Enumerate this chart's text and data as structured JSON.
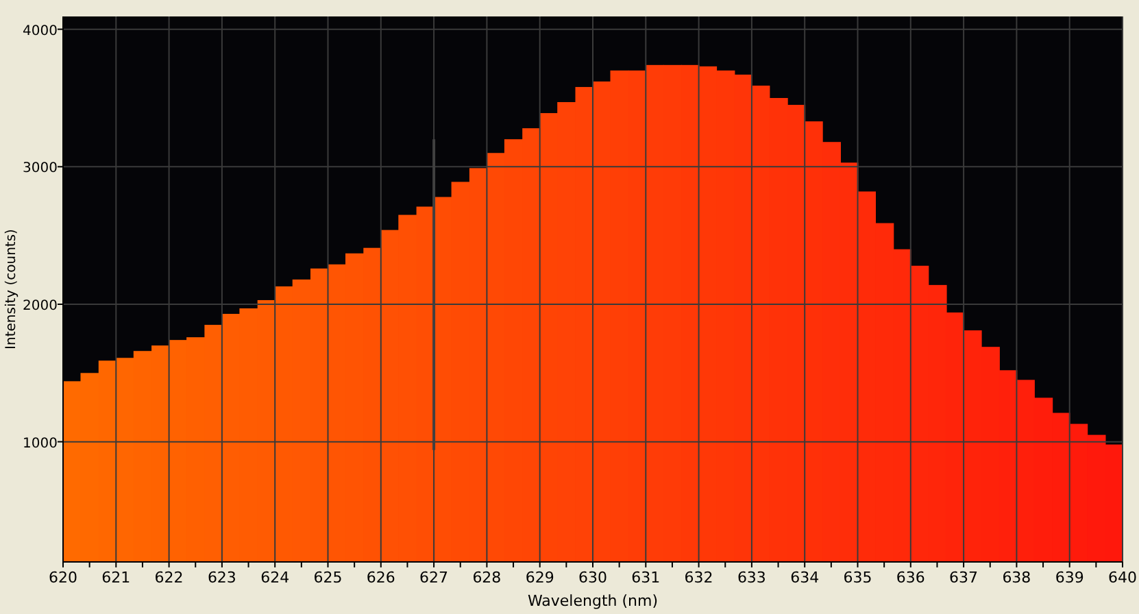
{
  "chart_data": {
    "type": "histogram",
    "xlabel": "Wavelength (nm)",
    "ylabel": "Intensity (counts)",
    "bins": [
      620,
      620.33,
      620.67,
      621,
      621.33,
      621.67,
      622,
      622.33,
      622.67,
      623,
      623.33,
      623.67,
      624,
      624.33,
      624.67,
      625,
      625.33,
      625.67,
      626,
      626.33,
      626.67,
      627,
      627.33,
      627.67,
      628,
      628.33,
      628.67,
      629,
      629.33,
      629.67,
      630,
      630.33,
      630.67,
      631,
      631.33,
      631.67,
      632,
      632.33,
      632.67,
      633,
      633.33,
      633.67,
      634,
      634.33,
      634.67,
      635,
      635.33,
      635.67,
      636,
      636.33,
      636.67,
      637,
      637.33,
      637.67,
      638,
      638.33,
      638.67,
      639,
      639.33,
      639.67,
      640
    ],
    "values": [
      1440,
      1500,
      1590,
      1610,
      1660,
      1700,
      1740,
      1760,
      1850,
      1930,
      1970,
      2030,
      2130,
      2180,
      2260,
      2290,
      2370,
      2410,
      2540,
      2650,
      2710,
      2780,
      2890,
      2990,
      3100,
      3200,
      3280,
      3390,
      3470,
      3580,
      3620,
      3700,
      3700,
      3740,
      3740,
      3740,
      3730,
      3700,
      3670,
      3590,
      3500,
      3450,
      3330,
      3180,
      3030,
      2820,
      2590,
      2400,
      2280,
      2140,
      1940,
      1810,
      1690,
      1520,
      1450,
      1320,
      1210,
      1130,
      1050,
      980
    ],
    "colors": [
      "#ff6a00",
      "#ff6900",
      "#ff6700",
      "#ff6601",
      "#ff6401",
      "#ff6301",
      "#ff6201",
      "#ff6001",
      "#ff5f02",
      "#ff5d02",
      "#ff5c02",
      "#ff5b02",
      "#ff5902",
      "#ff5803",
      "#ff5703",
      "#ff5503",
      "#ff5403",
      "#ff5203",
      "#ff5104",
      "#ff5004",
      "#ff4e04",
      "#ff4d04",
      "#ff4b04",
      "#ff4a05",
      "#ff4905",
      "#ff4705",
      "#ff4605",
      "#ff4405",
      "#ff4306",
      "#ff4206",
      "#ff4006",
      "#ff3f06",
      "#ff3d06",
      "#ff3c07",
      "#ff3b07",
      "#ff3907",
      "#ff3807",
      "#ff3707",
      "#ff3508",
      "#ff3408",
      "#ff3208",
      "#ff3108",
      "#ff3008",
      "#ff2e09",
      "#ff2d09",
      "#ff2b09",
      "#ff2a09",
      "#ff2909",
      "#ff270a",
      "#ff260a",
      "#ff240a",
      "#ff230a",
      "#ff220a",
      "#ff200b",
      "#ff1f0b",
      "#ff1d0b",
      "#ff1c0b",
      "#ff1b0b",
      "#ff190c",
      "#ff180c"
    ],
    "series": [
      {
        "type": "line",
        "color": "#404040",
        "x": [
          627,
          627
        ],
        "values": [
          940,
          3200
        ]
      }
    ],
    "xlim": [
      620,
      640
    ],
    "xticks": [
      620,
      {
        "value": 620.5,
        "label": null
      },
      621,
      {
        "value": 621.5,
        "label": null
      },
      622,
      {
        "value": 622.5,
        "label": null
      },
      623,
      {
        "value": 623.5,
        "label": null
      },
      624,
      {
        "value": 624.5,
        "label": null
      },
      625,
      {
        "value": 625.5,
        "label": null
      },
      626,
      {
        "value": 626.5,
        "label": null
      },
      627,
      {
        "value": 627.5,
        "label": null
      },
      628,
      {
        "value": 628.5,
        "label": null
      },
      629,
      {
        "value": 629.5,
        "label": null
      },
      630,
      {
        "value": 630.5,
        "label": null
      },
      631,
      {
        "value": 631.5,
        "label": null
      },
      632,
      {
        "value": 632.5,
        "label": null
      },
      633,
      {
        "value": 633.5,
        "label": null
      },
      634,
      {
        "value": 634.5,
        "label": null
      },
      635,
      {
        "value": 635.5,
        "label": null
      },
      636,
      {
        "value": 636.5,
        "label": null
      },
      637,
      {
        "value": 637.5,
        "label": null
      },
      638,
      {
        "value": 638.5,
        "label": null
      },
      639,
      {
        "value": 639.5,
        "label": null
      },
      640
    ],
    "ylim": [
      126,
      4093
    ],
    "yticks": [
      1000,
      2000,
      3000,
      4000
    ],
    "grid": true
  }
}
